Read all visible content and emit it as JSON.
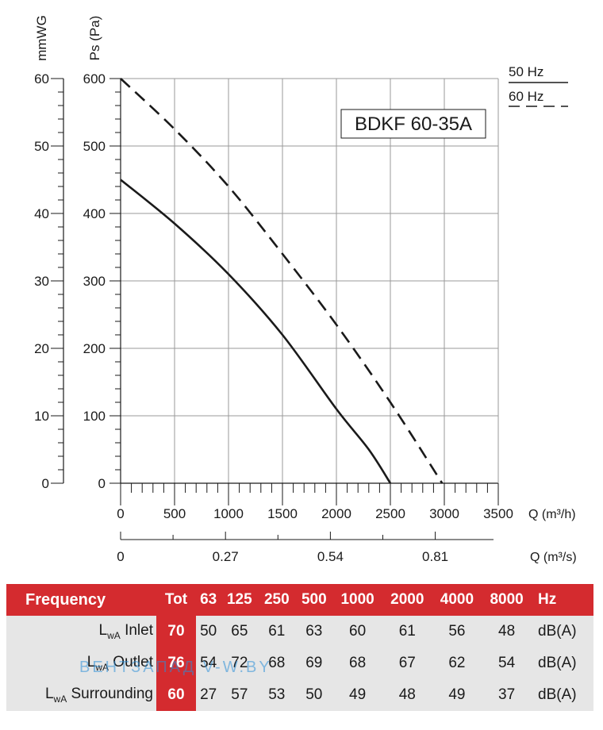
{
  "chart_data": {
    "type": "line",
    "title": "BDKF 60-35A",
    "y_left_label": "mmWG",
    "y_right_label": "Ps (Pa)",
    "ylim_mmwg": [
      0,
      60
    ],
    "ylim_pa": [
      0,
      600
    ],
    "mmwg_ticks": [
      "0",
      "10",
      "20",
      "30",
      "40",
      "50",
      "60"
    ],
    "pa_ticks": [
      "0",
      "100",
      "200",
      "300",
      "400",
      "500",
      "600"
    ],
    "xlabel": "Q (m³/h)",
    "xlim": [
      0,
      3500
    ],
    "x_ticks": [
      "0",
      "500",
      "1000",
      "1500",
      "2000",
      "2500",
      "3000",
      "3500"
    ],
    "x2label": "Q (m³/s)",
    "x2_ticks": [
      {
        "label": "0",
        "value": 0
      },
      {
        "label": "0.27",
        "value": 0.27
      },
      {
        "label": "0.54",
        "value": 0.54
      },
      {
        "label": "0.81",
        "value": 0.81
      }
    ],
    "grid": true,
    "legend_position": "top-right",
    "series": [
      {
        "name": "50 Hz",
        "style": "solid",
        "x": [
          0,
          500,
          1000,
          1500,
          2000,
          2300,
          2500
        ],
        "y": [
          450,
          385,
          310,
          220,
          110,
          50,
          0
        ]
      },
      {
        "name": "60 Hz",
        "style": "dashed",
        "x": [
          0,
          500,
          1000,
          1500,
          2000,
          2500,
          2980
        ],
        "y": [
          600,
          525,
          440,
          340,
          235,
          120,
          0
        ]
      }
    ]
  },
  "noise_table": {
    "frequency_label": "Frequency",
    "tot_label": "Tot",
    "frequencies": [
      "63",
      "125",
      "250",
      "500",
      "1000",
      "2000",
      "4000",
      "8000"
    ],
    "hz_label": "Hz",
    "rows": [
      {
        "label_main": "L",
        "label_sub": "wA",
        "label_rest": " Inlet",
        "tot": "70",
        "values": [
          "50",
          "65",
          "61",
          "63",
          "60",
          "61",
          "56",
          "48"
        ],
        "unit": "dB(A)"
      },
      {
        "label_main": "L",
        "label_sub": "wA",
        "label_rest": " Outlet",
        "tot": "76",
        "values": [
          "54",
          "72",
          "68",
          "69",
          "68",
          "67",
          "62",
          "54"
        ],
        "unit": "dB(A)"
      },
      {
        "label_main": "L",
        "label_sub": "wA",
        "label_rest": " Surrounding",
        "tot": "60",
        "values": [
          "27",
          "57",
          "53",
          "50",
          "49",
          "48",
          "49",
          "37"
        ],
        "unit": "dB(A)"
      }
    ]
  },
  "watermark": "ВЕНТЗАПАД   V-W.BY",
  "colors": {
    "accent": "#d42b2f",
    "row_bg": "#e6e6e6",
    "grid": "#9a9a9a",
    "ink": "#1a1a1a",
    "watermark": "#2b8fd9"
  }
}
